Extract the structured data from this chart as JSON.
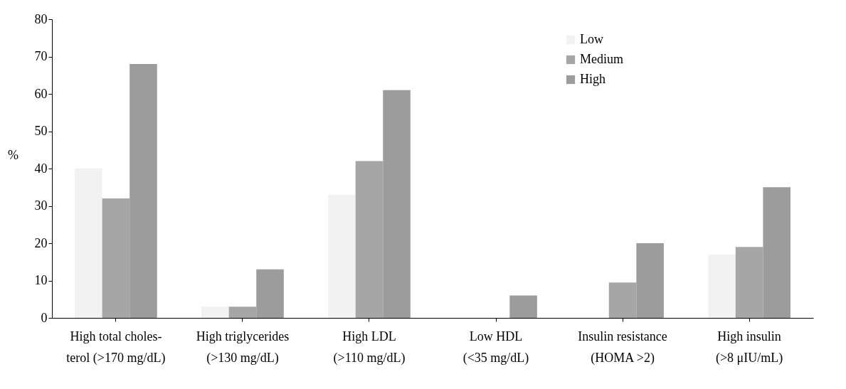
{
  "chart_data": {
    "type": "bar",
    "ylabel": "%",
    "categories": [
      "High total choles-\nterol (>170 mg/dL)",
      "High triglycerides\n(>130 mg/dL)",
      "High LDL\n(>110 mg/dL)",
      "Low HDL\n(<35 mg/dL)",
      "Insulin resistance\n(HOMA >2)",
      "High insulin\n(>8 μIU/mL)"
    ],
    "series": [
      {
        "name": "Low",
        "color": "#f2f2f2",
        "values": [
          40,
          3,
          33,
          0,
          0,
          17
        ]
      },
      {
        "name": "Medium",
        "color": "#a6a6a6",
        "values": [
          32,
          3,
          42,
          0,
          9.5,
          19
        ]
      },
      {
        "name": "High",
        "color": "#9c9c9c",
        "values": [
          68,
          13,
          61,
          6,
          20,
          35
        ]
      }
    ],
    "ylim": [
      0,
      80
    ],
    "yticks": [
      0,
      10,
      20,
      30,
      40,
      50,
      60,
      70,
      80
    ],
    "grid": false,
    "legend": "top right"
  }
}
